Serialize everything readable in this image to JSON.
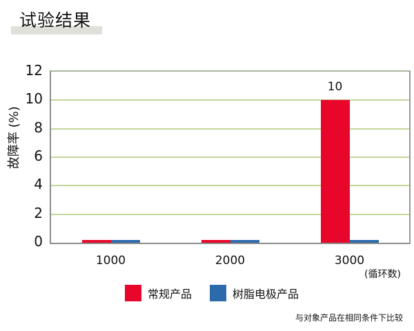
{
  "header": {
    "title": "试验结果"
  },
  "chart_data": {
    "type": "bar",
    "title": "试验结果",
    "xlabel": "(循环数)",
    "ylabel": "故障率 (%)",
    "categories": [
      "1000",
      "2000",
      "3000"
    ],
    "series": [
      {
        "name": "常规产品",
        "color": "#e8062a",
        "values": [
          0.2,
          0.2,
          10
        ]
      },
      {
        "name": "树脂电极产品",
        "color": "#2d6aac",
        "values": [
          0.2,
          0.2,
          0.2
        ]
      }
    ],
    "ylim": [
      0,
      12
    ],
    "yticks": [
      "0",
      "2",
      "4",
      "6",
      "8",
      "10",
      "12"
    ],
    "grid": true,
    "legend_position": "bottom",
    "data_labels": [
      {
        "category": "3000",
        "series": "常规产品",
        "text": "10"
      }
    ],
    "annotations": [
      "与对象产品在相同条件下比较"
    ]
  },
  "legend": {
    "items": [
      {
        "label": "常规产品"
      },
      {
        "label": "树脂电极产品"
      }
    ]
  },
  "footnote": "与对象产品在相同条件下比较"
}
